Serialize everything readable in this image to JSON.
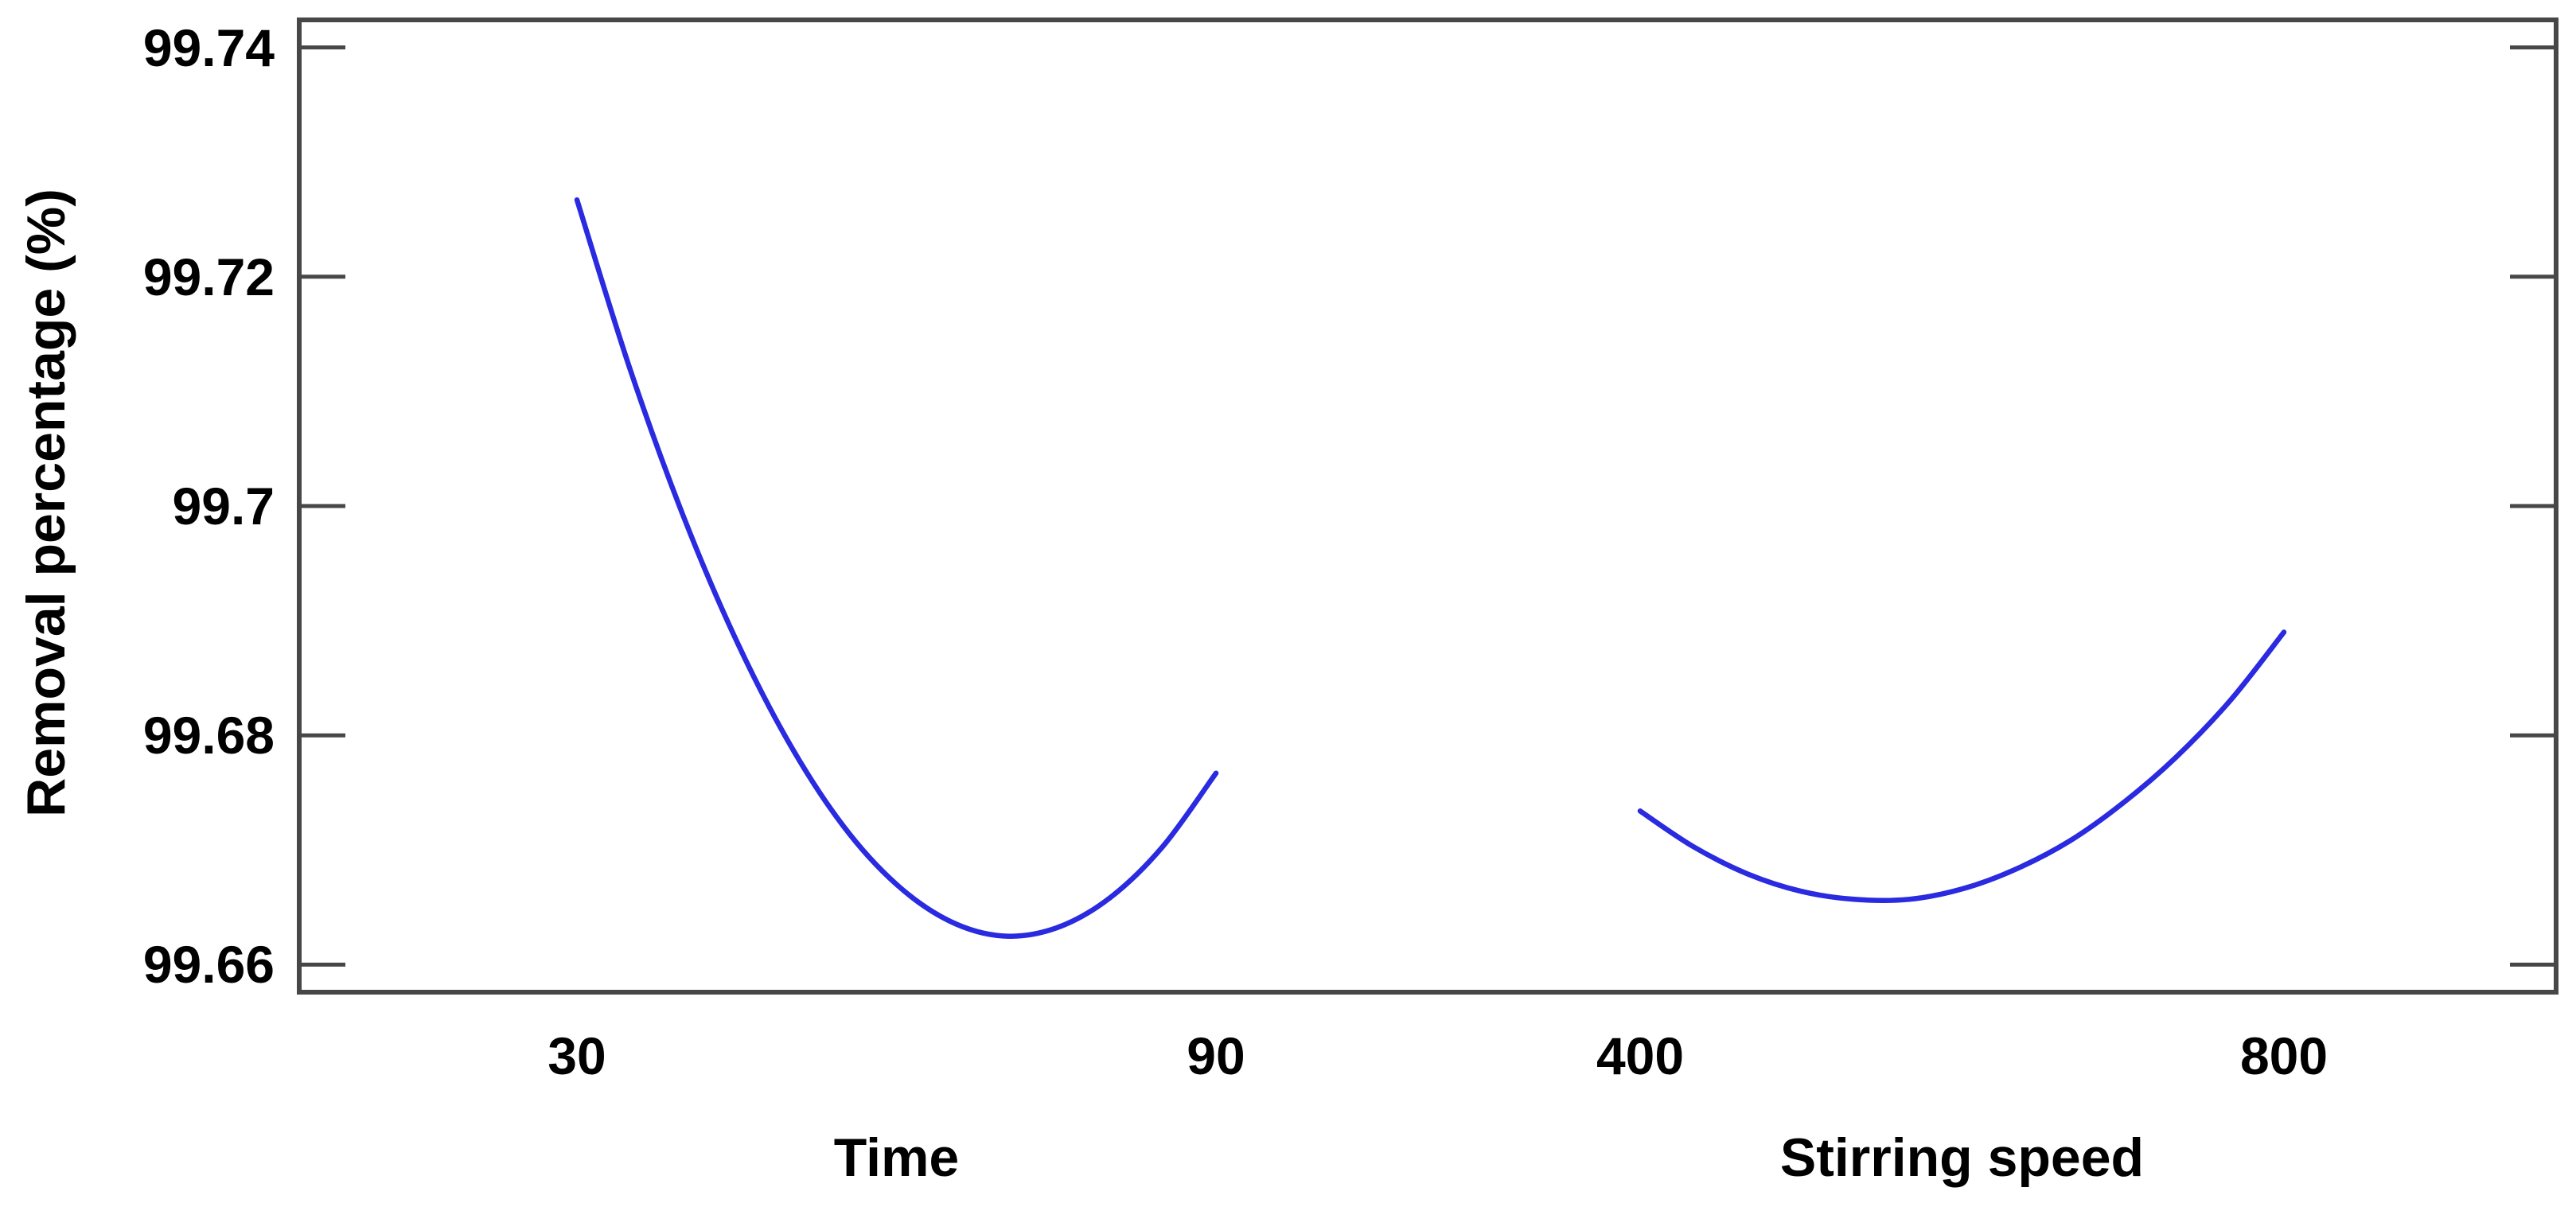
{
  "chart_data": {
    "type": "line",
    "title": "",
    "ylabel": "Removal percentage (%)",
    "ylim": [
      99.6576,
      99.7424
    ],
    "grid": "off",
    "legend": "none",
    "curve_color": "#2a2ae0",
    "axis_color": "#474747",
    "text_color": "#000000",
    "y_ticks": [
      {
        "value": 99.74,
        "label": "99.74"
      },
      {
        "value": 99.72,
        "label": "99.72"
      },
      {
        "value": 99.7,
        "label": "99.7"
      },
      {
        "value": 99.68,
        "label": "99.68"
      },
      {
        "value": 99.66,
        "label": "99.66"
      }
    ],
    "panels": [
      {
        "factor": "Time",
        "x_low_label": "30",
        "x_high_label": "90",
        "x_low": 30,
        "x_high": 90,
        "x": [
          30,
          35,
          40,
          45,
          50,
          55,
          60,
          65,
          70,
          75,
          80,
          85,
          90
        ],
        "y": [
          99.7267,
          99.7119,
          99.6991,
          99.6882,
          99.6792,
          99.6721,
          99.667,
          99.6638,
          99.6625,
          99.6632,
          99.6658,
          99.6703,
          99.6767
        ]
      },
      {
        "factor": "Stirring speed",
        "x_low_label": "400",
        "x_high_label": "800",
        "x_low": 400,
        "x_high": 800,
        "x": [
          400,
          433,
          467,
          500,
          533,
          567,
          600,
          633,
          667,
          700,
          733,
          767,
          800
        ],
        "y": [
          99.6734,
          99.6703,
          99.6679,
          99.6664,
          99.6657,
          99.6657,
          99.6666,
          99.6683,
          99.6708,
          99.6741,
          99.6781,
          99.6831,
          99.689
        ]
      }
    ]
  }
}
